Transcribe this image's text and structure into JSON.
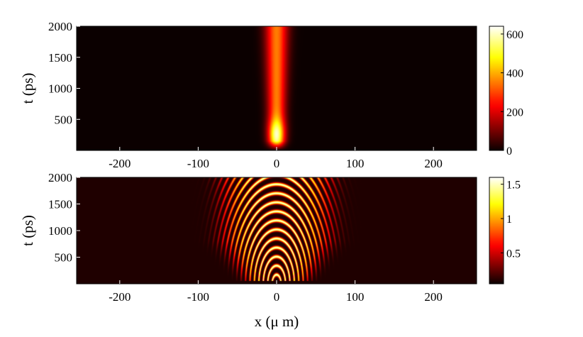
{
  "chart_data": [
    {
      "type": "heatmap",
      "title": "",
      "xlabel": "",
      "ylabel": "t (ps)",
      "xlim": [
        -255,
        255
      ],
      "ylim": [
        0,
        2000
      ],
      "x_ticks": [
        -200,
        -100,
        0,
        100,
        200
      ],
      "y_ticks": [
        500,
        1000,
        1500,
        2000
      ],
      "colormap": "hot",
      "colorbar": {
        "range": [
          0,
          640
        ],
        "ticks": [
          0,
          200,
          400,
          600
        ]
      },
      "features": [
        {
          "kind": "bright-channel",
          "x_center": 0,
          "t_range": [
            0,
            2000
          ],
          "intensity_range": [
            300,
            640
          ],
          "peak_t": 250
        }
      ]
    },
    {
      "type": "heatmap",
      "title": "",
      "xlabel": "x (μ m)",
      "ylabel": "t (ps)",
      "xlim": [
        -255,
        255
      ],
      "ylim": [
        0,
        2000
      ],
      "x_ticks": [
        -200,
        -100,
        0,
        100,
        200
      ],
      "y_ticks": [
        500,
        1000,
        1500,
        2000
      ],
      "colormap": "hot",
      "colorbar": {
        "range": [
          0.05,
          1.6
        ],
        "ticks": [
          0.5,
          1,
          1.5
        ]
      },
      "features": [
        {
          "kind": "fringe-pattern",
          "x_extent": [
            -70,
            70
          ],
          "t_range": [
            0,
            2000
          ],
          "fringes_appear_at_t": 80
        }
      ]
    }
  ]
}
